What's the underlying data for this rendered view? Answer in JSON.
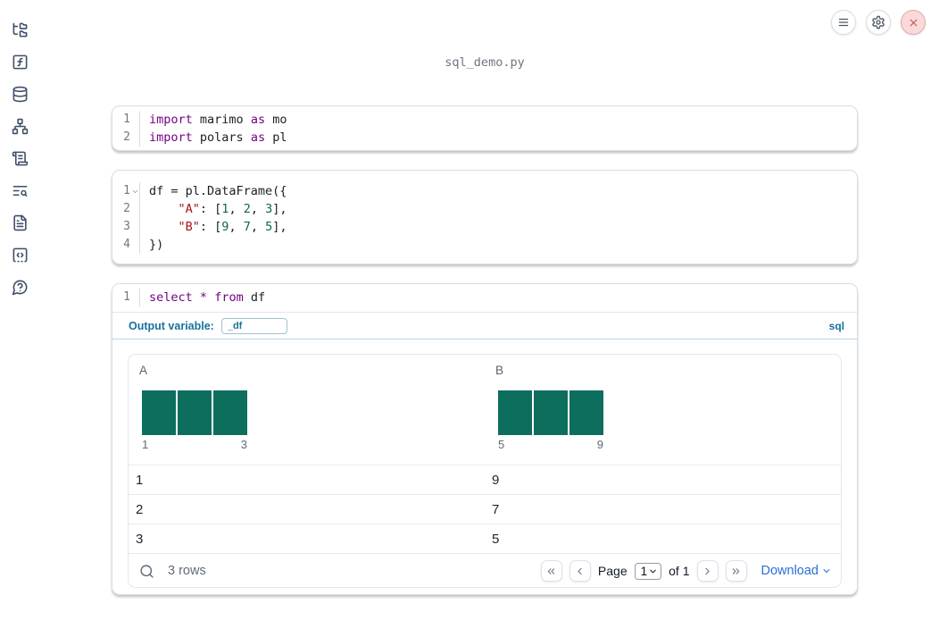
{
  "app": {
    "filename": "sql_demo.py"
  },
  "topbar": {
    "buttons": [
      {
        "name": "menu-button",
        "icon": "hamburger-menu-icon"
      },
      {
        "name": "settings-button",
        "icon": "gear-icon"
      },
      {
        "name": "shutdown-button",
        "icon": "close-x-icon"
      }
    ]
  },
  "sidebar": {
    "items": [
      {
        "id": "file-explorer",
        "icon": "folder-tree-icon"
      },
      {
        "id": "functions",
        "icon": "function-square-icon"
      },
      {
        "id": "datasources",
        "icon": "database-icon"
      },
      {
        "id": "dependencies",
        "icon": "network-graph-icon"
      },
      {
        "id": "scratchpad",
        "icon": "scroll-icon"
      },
      {
        "id": "logs",
        "icon": "text-search-icon"
      },
      {
        "id": "documentation",
        "icon": "file-text-icon"
      },
      {
        "id": "snippets",
        "icon": "code-square-icon"
      },
      {
        "id": "help",
        "icon": "help-bubble-icon"
      }
    ]
  },
  "cells": [
    {
      "type": "python",
      "lines": [
        {
          "num": "1",
          "tokens": [
            {
              "s": "kw",
              "v": "import"
            },
            {
              "s": "txt",
              "v": " marimo "
            },
            {
              "s": "kw",
              "v": "as"
            },
            {
              "s": "txt",
              "v": " mo"
            }
          ]
        },
        {
          "num": "2",
          "tokens": [
            {
              "s": "kw",
              "v": "import"
            },
            {
              "s": "txt",
              "v": " polars "
            },
            {
              "s": "kw",
              "v": "as"
            },
            {
              "s": "txt",
              "v": " pl"
            }
          ]
        }
      ]
    },
    {
      "type": "python",
      "lines": [
        {
          "num": "1",
          "fold": true,
          "tokens": [
            {
              "s": "txt",
              "v": "df = pl.DataFrame({"
            }
          ]
        },
        {
          "num": "2",
          "tokens": [
            {
              "s": "txt",
              "v": "    "
            },
            {
              "s": "str",
              "v": "\"A\""
            },
            {
              "s": "txt",
              "v": ": ["
            },
            {
              "s": "num",
              "v": "1"
            },
            {
              "s": "txt",
              "v": ", "
            },
            {
              "s": "num",
              "v": "2"
            },
            {
              "s": "txt",
              "v": ", "
            },
            {
              "s": "num",
              "v": "3"
            },
            {
              "s": "txt",
              "v": "],"
            }
          ]
        },
        {
          "num": "3",
          "tokens": [
            {
              "s": "txt",
              "v": "    "
            },
            {
              "s": "str",
              "v": "\"B\""
            },
            {
              "s": "txt",
              "v": ": ["
            },
            {
              "s": "num",
              "v": "9"
            },
            {
              "s": "txt",
              "v": ", "
            },
            {
              "s": "num",
              "v": "7"
            },
            {
              "s": "txt",
              "v": ", "
            },
            {
              "s": "num",
              "v": "5"
            },
            {
              "s": "txt",
              "v": "],"
            }
          ]
        },
        {
          "num": "4",
          "tokens": [
            {
              "s": "txt",
              "v": "})"
            }
          ]
        }
      ]
    },
    {
      "type": "sql",
      "lines": [
        {
          "num": "1",
          "tokens": [
            {
              "s": "kw",
              "v": "select"
            },
            {
              "s": "txt",
              "v": " "
            },
            {
              "s": "kw",
              "v": "*"
            },
            {
              "s": "txt",
              "v": " "
            },
            {
              "s": "kw",
              "v": "from"
            },
            {
              "s": "txt",
              "v": " df"
            }
          ]
        }
      ],
      "output_variable_label": "Output variable:",
      "output_variable_value": "_df",
      "language_badge": "sql"
    }
  ],
  "table": {
    "columns": [
      {
        "name": "A",
        "hist": {
          "bars": [
            1,
            1,
            1
          ],
          "xmin": "1",
          "xmax": "3"
        }
      },
      {
        "name": "B",
        "hist": {
          "bars": [
            1,
            1,
            1
          ],
          "xmin": "5",
          "xmax": "9"
        }
      }
    ],
    "rows": [
      [
        "1",
        "9"
      ],
      [
        "2",
        "7"
      ],
      [
        "3",
        "5"
      ]
    ],
    "footer": {
      "search_icon": "magnifier",
      "row_count": "3 rows",
      "page_label": "Page",
      "page_value": "1",
      "of_label": "of 1",
      "download_label": "Download"
    }
  },
  "colors": {
    "accent_teal_blue": "#17719b",
    "link_blue": "#2b6fd9",
    "histogram_bar": "#0e6e5e",
    "syntax_keyword": "#770088",
    "syntax_string": "#aa1111",
    "syntax_number": "#116644",
    "close_button_red": "#c64f4f",
    "sidebar_icon": "#3e4e68"
  }
}
